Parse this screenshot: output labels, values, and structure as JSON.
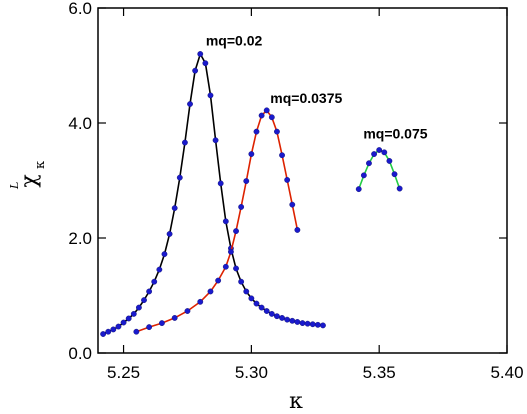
{
  "chart_data": {
    "type": "line",
    "title": "",
    "xlabel": "κ",
    "ylabel": {
      "symbol": "χ",
      "superscript": "L",
      "subscript": "κ"
    },
    "xlim": [
      5.24,
      5.4
    ],
    "ylim": [
      0.0,
      6.0
    ],
    "x_ticks": [
      5.25,
      5.3,
      5.35,
      5.4
    ],
    "x_tick_labels": [
      "5.25",
      "5.30",
      "5.35",
      "5.40"
    ],
    "y_ticks": [
      0.0,
      2.0,
      4.0,
      6.0
    ],
    "y_tick_labels": [
      "0.0",
      "2.0",
      "4.0",
      "6.0"
    ],
    "grid": false,
    "marker_color": "#1a1acc",
    "series": [
      {
        "name": "mq=0.02",
        "line_color": "#000000",
        "label_at": [
          5.2822,
          5.35
        ],
        "x": [
          5.242,
          5.244,
          5.246,
          5.248,
          5.25,
          5.252,
          5.254,
          5.256,
          5.258,
          5.26,
          5.262,
          5.264,
          5.266,
          5.268,
          5.27,
          5.272,
          5.274,
          5.276,
          5.278,
          5.28,
          5.282,
          5.284,
          5.286,
          5.288,
          5.29,
          5.292,
          5.294,
          5.296,
          5.298,
          5.3,
          5.302,
          5.304,
          5.306,
          5.308,
          5.31,
          5.312,
          5.314,
          5.316,
          5.318,
          5.32,
          5.322,
          5.324,
          5.326,
          5.328
        ],
        "y": [
          0.33,
          0.37,
          0.41,
          0.46,
          0.53,
          0.6,
          0.68,
          0.79,
          0.92,
          1.07,
          1.24,
          1.45,
          1.72,
          2.07,
          2.52,
          3.05,
          3.66,
          4.33,
          4.91,
          5.2,
          5.04,
          4.48,
          3.7,
          2.95,
          2.29,
          1.82,
          1.47,
          1.24,
          1.07,
          0.95,
          0.86,
          0.79,
          0.73,
          0.68,
          0.64,
          0.61,
          0.58,
          0.56,
          0.54,
          0.52,
          0.51,
          0.5,
          0.49,
          0.48
        ]
      },
      {
        "name": "mq=0.0375",
        "line_color": "#dd2200",
        "label_at": [
          5.3074,
          4.35
        ],
        "x": [
          5.255,
          5.26,
          5.265,
          5.27,
          5.275,
          5.28,
          5.284,
          5.287,
          5.29,
          5.292,
          5.294,
          5.296,
          5.298,
          5.3,
          5.302,
          5.304,
          5.306,
          5.308,
          5.31,
          5.312,
          5.314,
          5.316,
          5.318
        ],
        "y": [
          0.37,
          0.45,
          0.52,
          0.61,
          0.73,
          0.89,
          1.07,
          1.26,
          1.5,
          1.76,
          2.12,
          2.54,
          2.99,
          3.46,
          3.85,
          4.13,
          4.22,
          4.1,
          3.85,
          3.44,
          3.01,
          2.58,
          2.14
        ]
      },
      {
        "name": "mq=0.075",
        "line_color": "#22cc44",
        "label_at": [
          5.3438,
          3.73
        ],
        "x": [
          5.342,
          5.344,
          5.346,
          5.348,
          5.35,
          5.352,
          5.354,
          5.356,
          5.358
        ],
        "y": [
          2.85,
          3.09,
          3.3,
          3.46,
          3.53,
          3.49,
          3.34,
          3.11,
          2.86
        ]
      }
    ]
  }
}
